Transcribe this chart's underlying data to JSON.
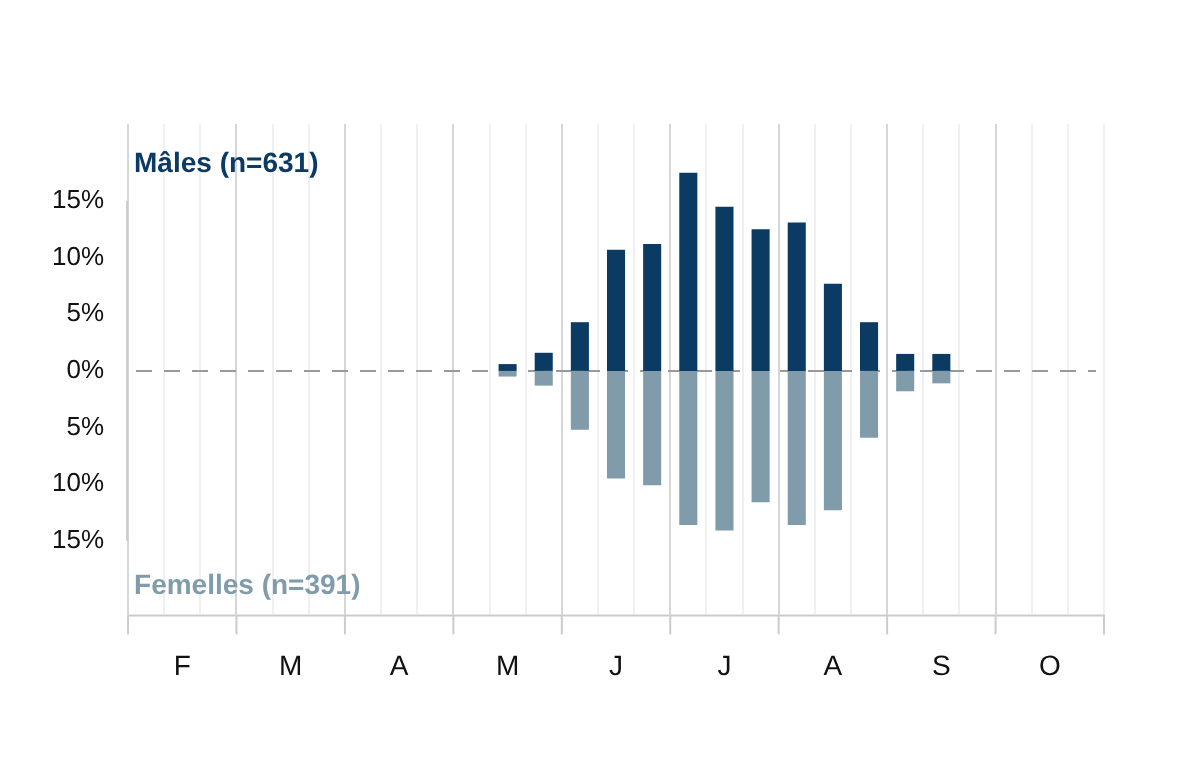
{
  "chart_data": {
    "type": "bar",
    "stacked": true,
    "grid": "x",
    "legend": false,
    "categories": [
      null,
      "F",
      null,
      null,
      "M",
      null,
      null,
      "A",
      null,
      null,
      "M",
      null,
      null,
      "J",
      null,
      null,
      "J",
      null,
      null,
      "A",
      null,
      null,
      "S",
      null,
      null,
      "O",
      null
    ],
    "series": [
      {
        "name": "Mâles (n=631)",
        "color": "#0b3a63",
        "values": [
          0,
          0,
          0,
          0,
          0,
          0,
          0,
          0,
          0,
          0,
          0.6,
          1.6,
          4.3,
          10.7,
          11.2,
          17.5,
          14.5,
          12.5,
          13.1,
          7.7,
          4.3,
          1.5,
          1.5,
          0,
          0,
          0,
          0
        ]
      },
      {
        "name": "Femelles (n=391)",
        "color": "#809cab",
        "values": [
          0,
          0,
          0,
          0,
          0,
          0,
          0,
          0,
          0,
          0,
          -0.5,
          -1.3,
          -5.2,
          -9.5,
          -10.1,
          -13.6,
          -14.1,
          -11.6,
          -13.6,
          -12.3,
          -5.9,
          -1.8,
          -1.1,
          0,
          0,
          0,
          0
        ]
      }
    ],
    "ref_lines": [
      {
        "axis": "y",
        "value": 0,
        "line_style": "dashed",
        "color": "#999999"
      }
    ],
    "ylim": [
      -21.5,
      21.8
    ],
    "yticks": [
      {
        "value": -15,
        "label": "15%"
      },
      {
        "value": -10,
        "label": "10%"
      },
      {
        "value": -5,
        "label": "5%"
      },
      {
        "value": 0,
        "label": "0%"
      },
      {
        "value": 5,
        "label": "5%"
      },
      {
        "value": 10,
        "label": "10%"
      },
      {
        "value": 15,
        "label": "15%"
      }
    ]
  }
}
